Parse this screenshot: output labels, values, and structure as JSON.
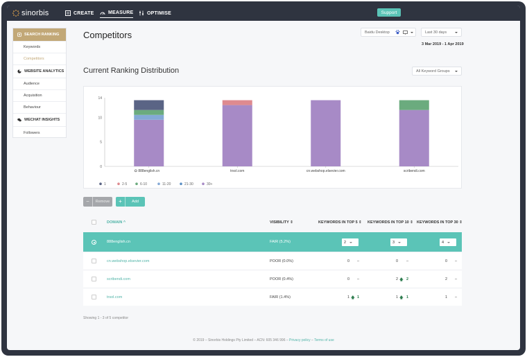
{
  "app": {
    "brand": "sinorbis"
  },
  "nav": {
    "items": [
      {
        "label": "CREATE",
        "icon": "create-icon"
      },
      {
        "label": "MEASURE",
        "icon": "measure-icon",
        "active": true
      },
      {
        "label": "OPTIMISE",
        "icon": "optimise-icon"
      }
    ],
    "support_label": "Support"
  },
  "sidebar": {
    "sections": [
      {
        "heading": "SEARCH RANKING",
        "icon": "search-ranking-icon",
        "items": [
          "Keywords",
          "Competitors"
        ],
        "selected": "Competitors"
      },
      {
        "heading": "WEBSITE ANALYTICS",
        "icon": "pie-icon",
        "items": [
          "Audience",
          "Acquisition",
          "Behaviour"
        ]
      },
      {
        "heading": "WECHAT INSIGHTS",
        "icon": "wechat-icon",
        "items": [
          "Followers"
        ]
      }
    ]
  },
  "page": {
    "title": "Competitors",
    "engine_select": "Baidu Desktop",
    "period_select": "Last 30 days",
    "date_range": "3 Mar 2019 - 1 Apr 2019",
    "section_title": "Current Ranking Distribution",
    "keyword_groups_select": "All Keyword Groups"
  },
  "colors": {
    "accent": "#5bc4b7",
    "sidebar_active": "#c2a877",
    "nav_bg": "#2f3440",
    "rank_1": "#5a6485",
    "rank_2_5": "#de8a8f",
    "rank_6_10": "#6bab7e",
    "rank_11_20": "#84a9d6",
    "rank_21_30": "#5b8fc4",
    "rank_30_plus": "#a78ac6"
  },
  "chart_data": {
    "type": "bar",
    "stacked": true,
    "categories": [
      "888english.cn",
      "trsol.com",
      "cn.webshop.elsevier.com",
      "scribendi.com"
    ],
    "series": [
      {
        "name": "30+",
        "values": [
          9.5,
          12.5,
          13.5,
          11.5
        ]
      },
      {
        "name": "21-30",
        "values": [
          0,
          0,
          0,
          0
        ]
      },
      {
        "name": "11-20",
        "values": [
          1,
          0,
          0,
          0
        ]
      },
      {
        "name": "6-10",
        "values": [
          1,
          0,
          0,
          2
        ]
      },
      {
        "name": "2-5",
        "values": [
          0,
          1,
          0,
          0
        ]
      },
      {
        "name": "1",
        "values": [
          2,
          0,
          0,
          0
        ]
      }
    ],
    "legend_order": [
      "1",
      "2-5",
      "6-10",
      "11-20",
      "21-30",
      "30+"
    ],
    "yticks": [
      "0",
      "5",
      "10",
      "14"
    ],
    "ylim": [
      0,
      14
    ],
    "legend_placement": "bottom-left",
    "grid": false
  },
  "actions": {
    "remove_label": "Remove",
    "add_label": "Add"
  },
  "table": {
    "headers": {
      "domain": "DOMAIN",
      "visibility": "VISIBILITY",
      "top5": "KEYWORDS IN TOP 5",
      "top10": "KEYWORDS IN TOP 10",
      "top30": "KEYWORDS IN TOP 30"
    },
    "rows": [
      {
        "domain": "888english.cn",
        "visibility": "FAIR (5.2%)",
        "top5": "2",
        "top10": "3",
        "top30": "4",
        "active": true
      },
      {
        "domain": "cn.webshop.elsevier.com",
        "visibility": "POOR (0.0%)",
        "top5": "0",
        "top5_change": "–",
        "top10": "0",
        "top10_change": "–",
        "top30": "0",
        "top30_change": "–"
      },
      {
        "domain": "scribendi.com",
        "visibility": "POOR (0.4%)",
        "top5": "0",
        "top5_change": "–",
        "top10": "2",
        "top10_change": "2",
        "top30": "2",
        "top30_change": "–"
      },
      {
        "domain": "trsol.com",
        "visibility": "FAIR (1.4%)",
        "top5": "1",
        "top5_change": "1",
        "top10": "1",
        "top10_change": "1",
        "top30": "1",
        "top30_change": "–"
      }
    ],
    "showing": "Showing 1 - 3 of 5 competitor"
  },
  "footer": {
    "text": "© 2019 – Sinorbis Holdings Pty Limited – ACN: 605 346 996 –",
    "privacy": "Privacy policy",
    "sep": "–",
    "terms": "Terms of use"
  }
}
